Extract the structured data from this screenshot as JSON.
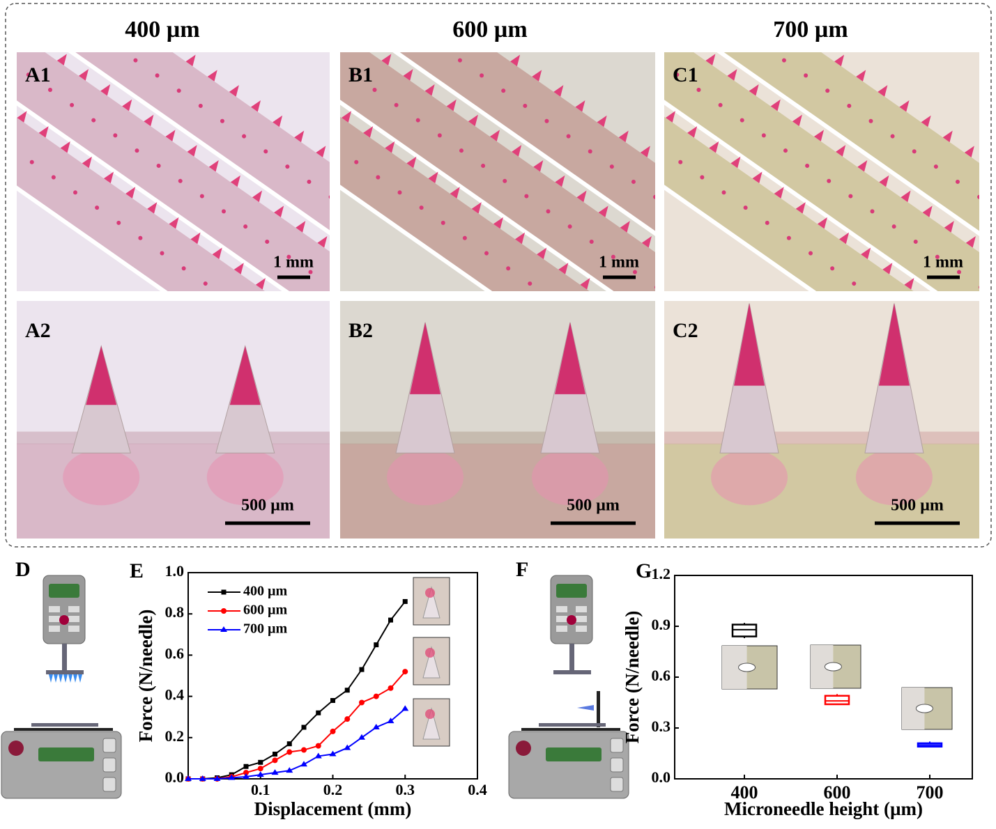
{
  "headers": [
    "400 µm",
    "600 µm",
    "700 µm"
  ],
  "photos": [
    {
      "label": "A1",
      "scale_bar": "1 mm"
    },
    {
      "label": "B1",
      "scale_bar": "1 mm"
    },
    {
      "label": "C1",
      "scale_bar": "1 mm"
    },
    {
      "label": "A2",
      "scale_bar": "500 µm"
    },
    {
      "label": "B2",
      "scale_bar": "500 µm"
    },
    {
      "label": "C2",
      "scale_bar": "500 µm"
    }
  ],
  "panel_labels": [
    "D",
    "E",
    "F",
    "G"
  ],
  "chart_data": [
    {
      "type": "line",
      "x_label": "Displacement (mm)",
      "y_label": "Force (N/needle)",
      "x": [
        0,
        0.02,
        0.04,
        0.06,
        0.08,
        0.1,
        0.12,
        0.14,
        0.16,
        0.18,
        0.2,
        0.22,
        0.24,
        0.26,
        0.28,
        0.3
      ],
      "xlim": [
        0,
        0.4
      ],
      "xticks": [
        0.1,
        0.2,
        0.3,
        0.4
      ],
      "ylim": [
        0,
        1.0
      ],
      "yticks": [
        {
          "value": 0,
          "label": "0.0"
        },
        0.2,
        0.4,
        0.6,
        0.8,
        {
          "value": 1.0,
          "label": "1.0"
        }
      ],
      "series": [
        {
          "name": "400 µm",
          "color": "#000000",
          "marker": "square",
          "values": [
            0,
            0,
            0.005,
            0.02,
            0.06,
            0.08,
            0.12,
            0.17,
            0.25,
            0.32,
            0.38,
            0.43,
            0.53,
            0.65,
            0.77,
            0.86
          ]
        },
        {
          "name": "600 µm",
          "color": "#ff0000",
          "marker": "circle",
          "values": [
            0,
            0,
            0,
            0.01,
            0.03,
            0.05,
            0.09,
            0.13,
            0.14,
            0.16,
            0.23,
            0.29,
            0.37,
            0.4,
            0.44,
            0.52
          ]
        },
        {
          "name": "700 µm",
          "color": "#0000ff",
          "marker": "triangle",
          "values": [
            0,
            0,
            0,
            0.005,
            0.01,
            0.02,
            0.03,
            0.04,
            0.07,
            0.11,
            0.12,
            0.15,
            0.2,
            0.25,
            0.28,
            0.34
          ]
        }
      ]
    },
    {
      "type": "box",
      "x_label": "Microneedle height (µm)",
      "y_label": "Force (N/needle)",
      "categories": [
        "400",
        "600",
        "700"
      ],
      "ylim": [
        0,
        1.2
      ],
      "yticks": [
        {
          "value": 0,
          "label": "0.0"
        },
        0.3,
        0.6,
        0.9,
        {
          "value": 1.2,
          "label": "1.2"
        }
      ],
      "boxes": [
        {
          "color": "#000000",
          "min": 0.83,
          "q1": 0.84,
          "median": 0.88,
          "q3": 0.91,
          "max": 0.92
        },
        {
          "color": "#ff0000",
          "min": 0.44,
          "q1": 0.44,
          "median": 0.46,
          "q3": 0.49,
          "max": 0.5
        },
        {
          "color": "#0000ff",
          "min": 0.19,
          "q1": 0.19,
          "median": 0.2,
          "q3": 0.21,
          "max": 0.22
        }
      ]
    }
  ]
}
